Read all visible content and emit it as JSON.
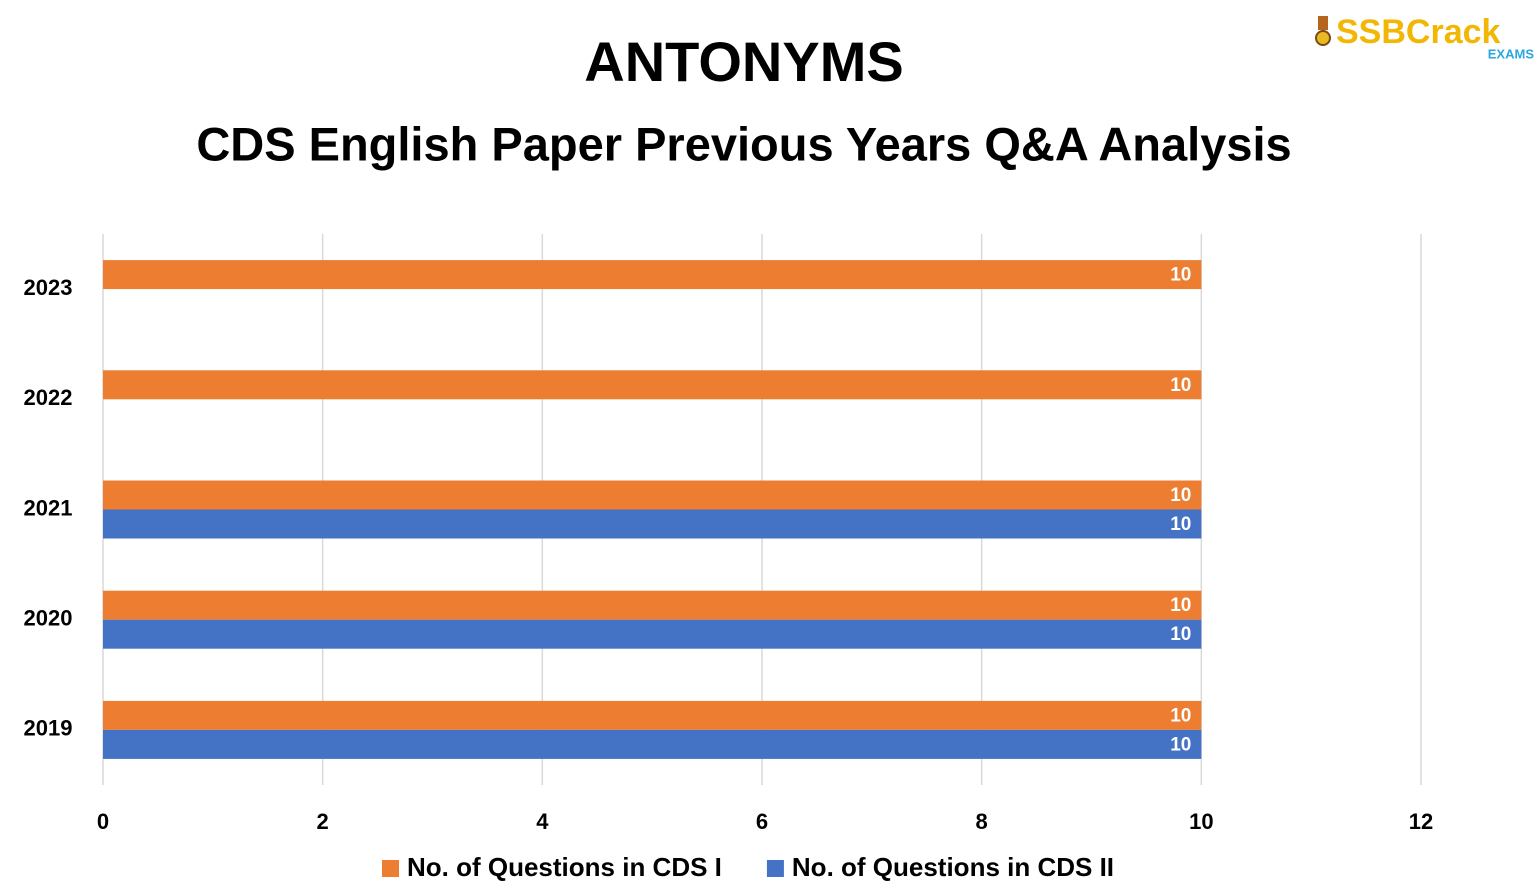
{
  "logo": {
    "brand": "SSBCrack",
    "sub": "EXAMS"
  },
  "chart_data": {
    "type": "hbar",
    "title": "ANTONYMS",
    "subtitle": "CDS English Paper Previous Years Q&A Analysis",
    "categories": [
      "2023",
      "2022",
      "2021",
      "2020",
      "2019"
    ],
    "series": [
      {
        "name": "No. of Questions in CDS I",
        "color": "#ed7d31",
        "values": [
          10,
          10,
          10,
          10,
          10
        ]
      },
      {
        "name": "No. of Questions in CDS II",
        "color": "#4472c4",
        "values": [
          null,
          null,
          10,
          10,
          10
        ]
      }
    ],
    "xlim": [
      0,
      12
    ],
    "xticks": [
      0,
      2,
      4,
      6,
      8,
      10,
      12
    ],
    "grid": true,
    "legend": "bottom"
  }
}
